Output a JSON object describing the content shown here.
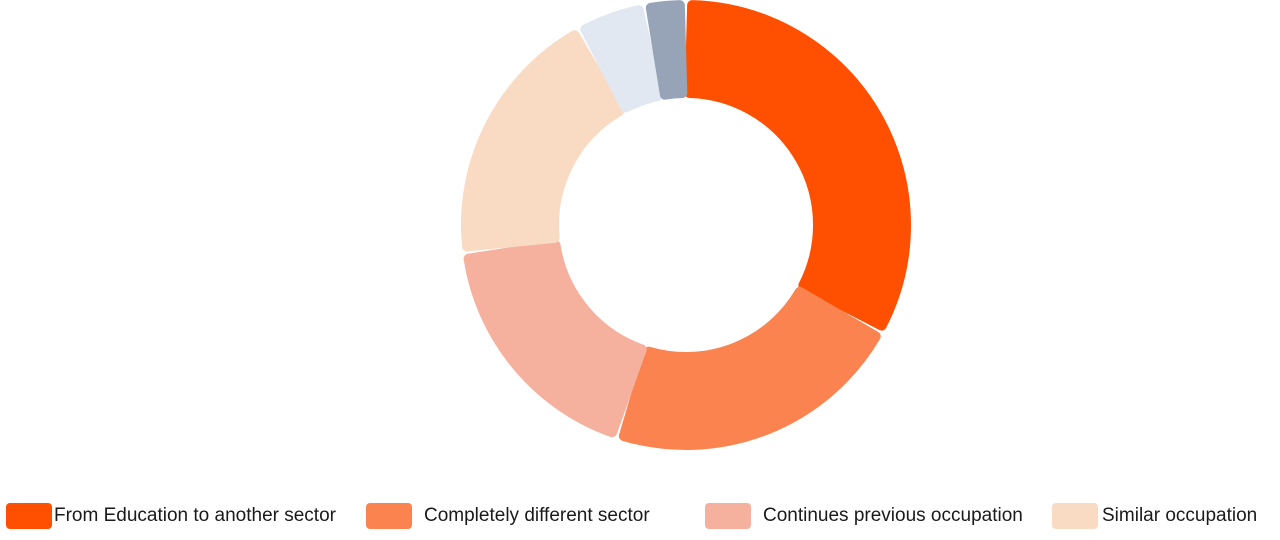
{
  "chart_data": {
    "type": "pie",
    "title": "",
    "categories": [
      "From Education to another sector",
      "Completely different sector",
      "Continues previous occupation",
      "Similar occupation",
      "",
      ""
    ],
    "values": [
      33,
      22,
      18,
      19,
      5,
      3
    ],
    "colors": [
      "#ff4f00",
      "#fa8350",
      "#f5b19e",
      "#f9dbc4",
      "#e2e8f1",
      "#97a4b8"
    ],
    "donut": true,
    "legend_position": "bottom",
    "legend": [
      {
        "label": "From Education to another sector",
        "color": "#ff4f00"
      },
      {
        "label": "Completely different sector",
        "color": "#fa8350"
      },
      {
        "label": "Continues previous occupation",
        "color": "#f5b19e"
      },
      {
        "label": "Similar occupation",
        "color": "#f9dbc4"
      }
    ]
  }
}
